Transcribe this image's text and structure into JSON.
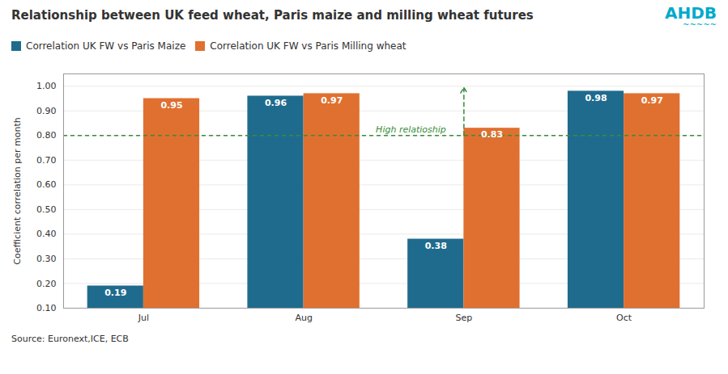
{
  "chart_data": {
    "type": "bar",
    "title": "Relationship between UK feed wheat, Paris maize and milling wheat futures",
    "y_label": "Coefficient correlation per month",
    "categories": [
      "Jul",
      "Aug",
      "Sep",
      "Oct"
    ],
    "series": [
      {
        "name": "Correlation UK FW vs Paris Maize",
        "color": "#1f6b8e",
        "values": [
          0.19,
          0.96,
          0.38,
          0.98
        ]
      },
      {
        "name": "Correlation UK FW vs Paris Milling wheat",
        "color": "#e07030",
        "values": [
          0.95,
          0.97,
          0.83,
          0.97
        ]
      }
    ],
    "ylim": [
      0.1,
      1.05
    ],
    "yticks": [
      {
        "value": 0.1,
        "label": "0.10"
      },
      {
        "value": 0.2,
        "label": "0.20"
      },
      {
        "value": 0.3,
        "label": "0.30"
      },
      {
        "value": 0.4,
        "label": "0.40"
      },
      {
        "value": 0.5,
        "label": "0.50"
      },
      {
        "value": 0.6,
        "label": "0.60"
      },
      {
        "value": 0.7,
        "label": "0.70"
      },
      {
        "value": 0.8,
        "label": "0.80"
      },
      {
        "value": 0.9,
        "label": "0.90"
      },
      {
        "value": 1.0,
        "label": "1.00"
      }
    ],
    "grid": true,
    "data_labels": true,
    "legend": "upper left",
    "reference_line": {
      "y": 0.8,
      "color": "#3a8c3a",
      "line_style": "dashed"
    },
    "arrow": {
      "category": "Sep",
      "y_start": 0.8,
      "y_end": 0.995,
      "color": "#3a8c3a",
      "line_style": "dashed"
    },
    "annotations": [
      {
        "text": "High relatioship",
        "color": "#3a8c3a"
      }
    ],
    "logo": {
      "text": "AHDB",
      "wave": "~~~~~",
      "color": "#00aacc"
    },
    "source": "Source: Euronext,ICE, ECB"
  }
}
